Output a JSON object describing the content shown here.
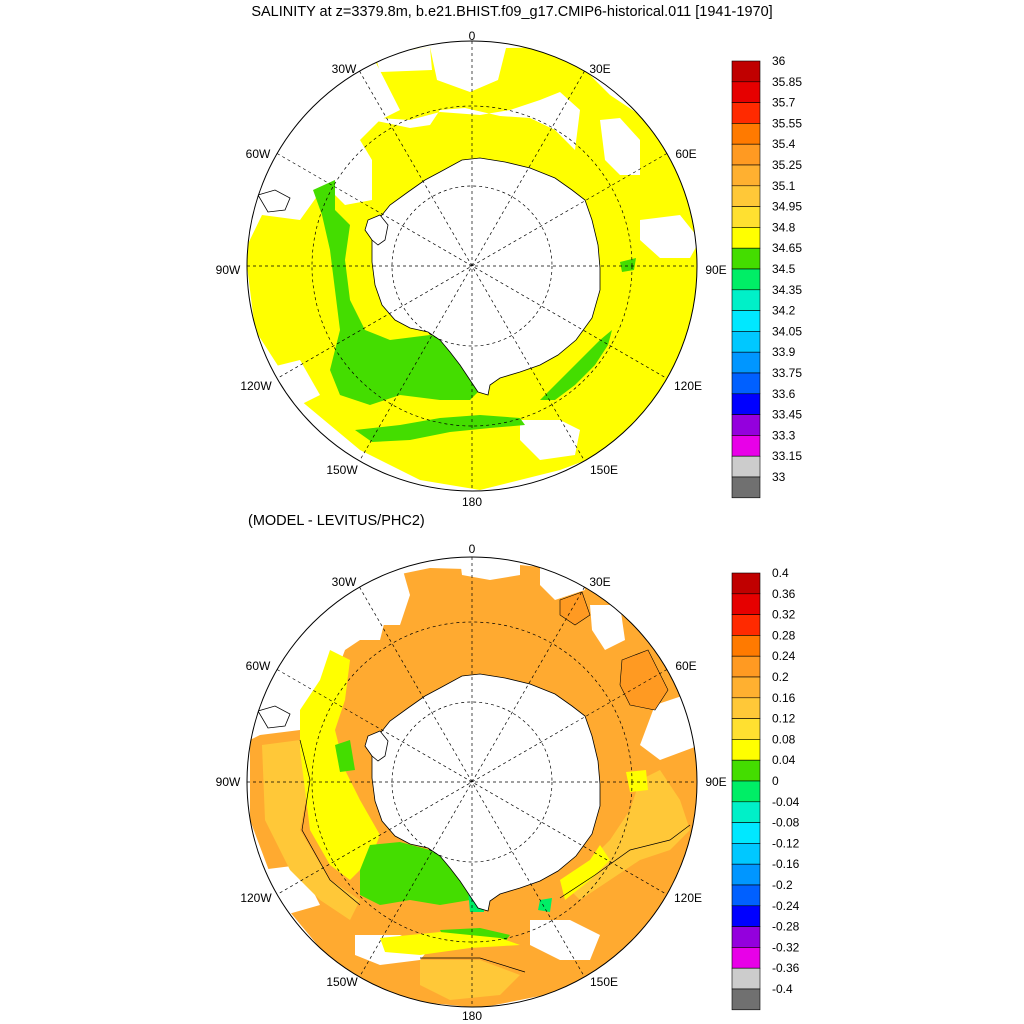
{
  "title": "SALINITY at z=3379.8m, b.e21.BHIST.f09_g17.CMIP6-historical.011 [1941-1970]",
  "subtitle": "(MODEL - LEVITUS/PHC2)",
  "lon_labels": [
    "0",
    "30E",
    "60E",
    "90E",
    "120E",
    "150E",
    "180",
    "150W",
    "120W",
    "90W",
    "60W",
    "30W"
  ],
  "colorbar_top": {
    "labels": [
      "36",
      "35.85",
      "35.7",
      "35.55",
      "35.4",
      "35.25",
      "35.1",
      "34.95",
      "34.8",
      "34.65",
      "34.5",
      "34.35",
      "34.2",
      "34.05",
      "33.9",
      "33.75",
      "33.6",
      "33.45",
      "33.3",
      "33.15",
      "33"
    ],
    "colors": [
      "#c00000",
      "#e60000",
      "#ff2a00",
      "#ff7a00",
      "#ff9a22",
      "#ffb030",
      "#ffc838",
      "#ffe030",
      "#ffff00",
      "#44dd00",
      "#00ee66",
      "#00f0c8",
      "#00e8ff",
      "#00c8ff",
      "#0096ff",
      "#0060ff",
      "#0000ff",
      "#9400dd",
      "#e800e8",
      "#cccccc",
      "#707070"
    ]
  },
  "colorbar_bottom": {
    "labels": [
      "0.4",
      "0.36",
      "0.32",
      "0.28",
      "0.24",
      "0.2",
      "0.16",
      "0.12",
      "0.08",
      "0.04",
      "0",
      "-0.04",
      "-0.08",
      "-0.12",
      "-0.16",
      "-0.2",
      "-0.24",
      "-0.28",
      "-0.32",
      "-0.36",
      "-0.4"
    ],
    "colors": [
      "#c00000",
      "#e60000",
      "#ff2a00",
      "#ff7a00",
      "#ff9a22",
      "#ffb030",
      "#ffc838",
      "#ffe030",
      "#ffff00",
      "#44dd00",
      "#00ee66",
      "#00f0c8",
      "#00e8ff",
      "#00c8ff",
      "#0096ff",
      "#0060ff",
      "#0000ff",
      "#9400dd",
      "#e800e8",
      "#cccccc",
      "#707070"
    ]
  },
  "colors": {
    "salinity_yellow": "#ffff00",
    "salinity_green": "#44dd00",
    "anomaly_orange": "#ffaa30",
    "anomaly_light_orange": "#ffc838",
    "anomaly_yellow": "#ffff00",
    "anomaly_green": "#44dd00",
    "anomaly_mint": "#00ee66",
    "anomaly_dark_orange": "#ff9a22"
  }
}
